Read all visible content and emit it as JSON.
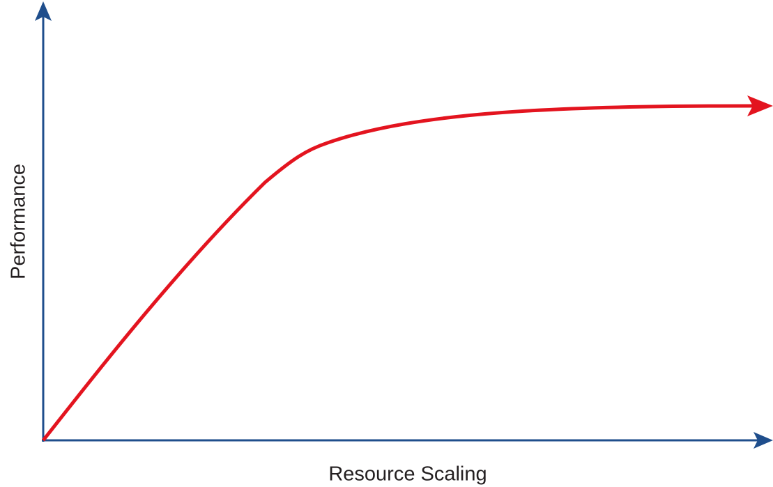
{
  "axes": {
    "y_label": "Performance",
    "x_label": "Resource Scaling"
  }
}
